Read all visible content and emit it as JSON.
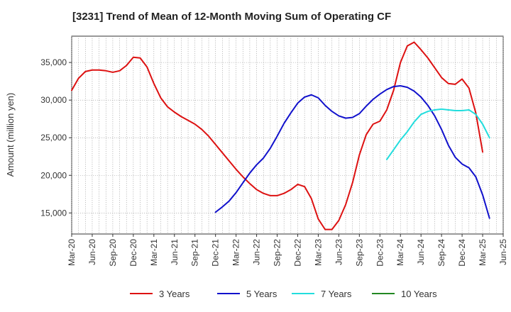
{
  "chart_data": {
    "type": "line",
    "title": "[3231]  Trend of Mean of 12-Month Moving Sum of Operating CF",
    "xlabel": "",
    "ylabel": "Amount (million yen)",
    "ylim": [
      12200,
      38500
    ],
    "yticks": [
      15000,
      20000,
      25000,
      30000,
      35000
    ],
    "ytick_labels": [
      "15,000",
      "20,000",
      "25,000",
      "30,000",
      "35,000"
    ],
    "xticks": [
      "Mar-20",
      "Jun-20",
      "Sep-20",
      "Dec-20",
      "Mar-21",
      "Jun-21",
      "Sep-21",
      "Dec-21",
      "Mar-22",
      "Jun-22",
      "Sep-22",
      "Dec-22",
      "Mar-23",
      "Jun-23",
      "Sep-23",
      "Dec-23",
      "Mar-24",
      "Jun-24",
      "Sep-24",
      "Dec-24",
      "Mar-25",
      "Jun-25"
    ],
    "x_start": "Mar-20",
    "grid": true,
    "legend_position": "bottom",
    "series": [
      {
        "name": "3 Years",
        "color": "#dd1111",
        "start_index": 0,
        "values": [
          31300,
          32900,
          33800,
          34000,
          34000,
          33900,
          33700,
          33900,
          34600,
          35700,
          35600,
          34400,
          32200,
          30300,
          29100,
          28400,
          27800,
          27300,
          26800,
          26100,
          25200,
          24100,
          23000,
          21900,
          20800,
          19800,
          18900,
          18100,
          17600,
          17300,
          17300,
          17600,
          18100,
          18800,
          18500,
          16900,
          14200,
          12800,
          12800,
          14000,
          16100,
          19000,
          22700,
          25400,
          26800,
          27200,
          28700,
          31300,
          35000,
          37200,
          37700,
          36700,
          35600,
          34300,
          33000,
          32200,
          32100,
          32800,
          31600,
          28300,
          23100
        ]
      },
      {
        "name": "5 Years",
        "color": "#1111cc",
        "start_index": 21,
        "values": [
          15100,
          15800,
          16600,
          17700,
          19000,
          20300,
          21400,
          22300,
          23600,
          25200,
          26900,
          28300,
          29600,
          30400,
          30700,
          30300,
          29300,
          28500,
          27900,
          27600,
          27700,
          28200,
          29200,
          30100,
          30800,
          31400,
          31800,
          31900,
          31700,
          31200,
          30400,
          29300,
          27900,
          26100,
          24000,
          22400,
          21500,
          21000,
          19800,
          17400,
          14300
        ]
      },
      {
        "name": "7 Years",
        "color": "#22dddd",
        "start_index": 46,
        "values": [
          22100,
          23400,
          24700,
          25800,
          27100,
          28100,
          28500,
          28700,
          28800,
          28700,
          28600,
          28600,
          28700,
          28100,
          26800,
          25000
        ]
      },
      {
        "name": "10 Years",
        "color": "#228822",
        "start_index": 0,
        "values": []
      }
    ]
  }
}
